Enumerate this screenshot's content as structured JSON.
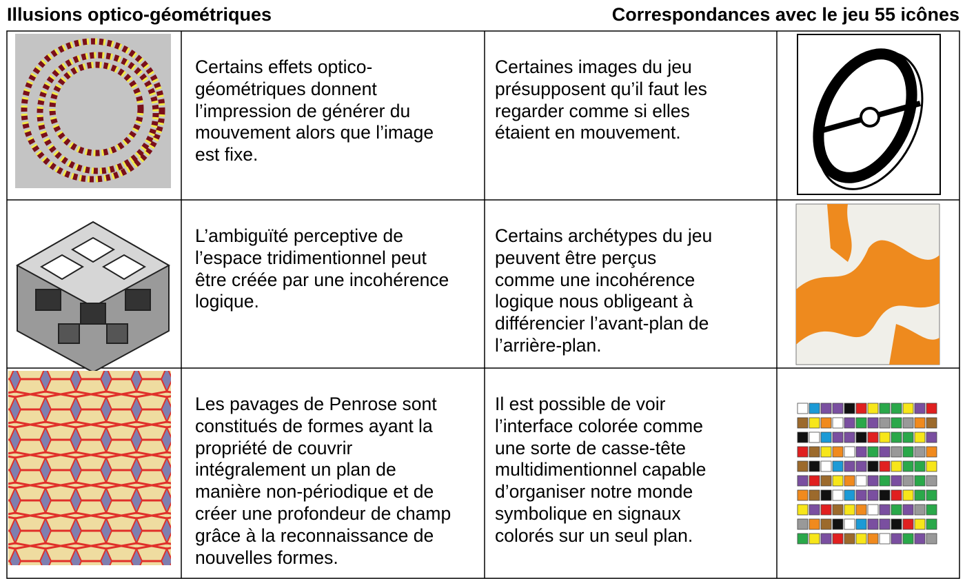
{
  "header": {
    "title": "Illusions optico-géométriques",
    "subtitle": "Correspondances avec le jeu 55 icônes"
  },
  "table": {
    "rows": [
      {
        "illusion": [
          "Certains effets optico-",
          "géométriques donnent",
          "l’impression de générer du",
          "mouvement alors que l’image",
          "est fixe."
        ],
        "correspondance": [
          "Certaines images du jeu",
          "présupposent qu’il faut les",
          "regarder comme si elles",
          "étaient en mouvement."
        ]
      },
      {
        "illusion": [
          "L’ambiguïté perceptive de",
          "l’espace tridimentionnel peut",
          "être créée par une incohérence",
          "logique."
        ],
        "correspondance": [
          "Certains archétypes du jeu",
          "peuvent être perçus",
          "comme une incohérence",
          "logique nous obligeant à",
          "différencier l’avant-plan de",
          "l’arrière-plan."
        ]
      },
      {
        "illusion": [
          "Les pavages de Penrose sont",
          "constitués de formes ayant la",
          "propriété de couvrir",
          "intégralement un plan de",
          "manière non-périodique et de",
          "créer une profondeur de champ",
          "grâce à la reconnaissance de",
          "nouvelles formes."
        ],
        "correspondance": [
          "Il est possible de voir",
          "l’interface colorée comme",
          "une sorte de casse-tête",
          "multidimentionnel capable",
          "d’organiser notre monde",
          "symbolique en signaux",
          "colorés sur un seul plan."
        ]
      }
    ]
  }
}
